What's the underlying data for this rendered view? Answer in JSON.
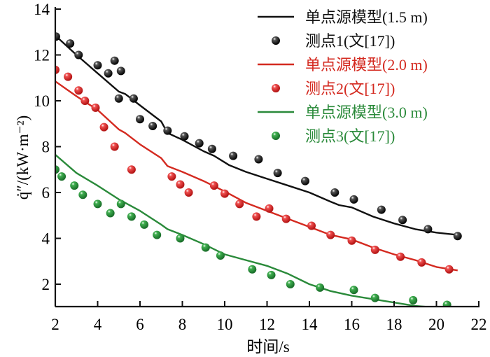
{
  "chart_data": {
    "type": "line",
    "title": "",
    "xlabel": "时间/s",
    "ylabel": "q̇″/(kW·m⁻²)",
    "xlim": [
      2,
      22
    ],
    "ylim": [
      1,
      14
    ],
    "xticks": [
      2,
      4,
      6,
      8,
      10,
      12,
      14,
      16,
      18,
      20,
      22
    ],
    "yticks": [
      2,
      4,
      6,
      8,
      10,
      12,
      14
    ],
    "grid": false,
    "legend_position": "top-right",
    "series": [
      {
        "name": "单点源模型(1.5 m)",
        "kind": "line",
        "color": "#111111",
        "x": [
          2,
          3,
          4,
          5,
          5.3,
          6,
          7,
          7.3,
          8,
          9,
          9.5,
          10.2,
          11,
          12,
          13,
          14,
          15,
          15.4,
          16,
          17,
          18,
          19,
          20,
          21
        ],
        "y": [
          12.85,
          12.0,
          11.2,
          10.4,
          10.3,
          9.8,
          9.1,
          8.6,
          8.3,
          7.8,
          7.6,
          7.2,
          6.9,
          6.6,
          6.3,
          6.0,
          5.6,
          5.45,
          5.35,
          4.95,
          4.65,
          4.4,
          4.25,
          4.15
        ]
      },
      {
        "name": "测点1(文[17])",
        "kind": "scatter",
        "color": "#111111",
        "x": [
          2.03,
          2.7,
          3.1,
          4.0,
          4.5,
          4.8,
          5.1,
          5.0,
          5.7,
          6.0,
          6.6,
          7.3,
          8.1,
          8.8,
          9.4,
          10.4,
          11.6,
          12.5,
          13.8,
          15.2,
          16.1,
          17.4,
          18.4,
          19.6,
          21.0
        ],
        "y": [
          12.8,
          12.5,
          12.0,
          11.55,
          11.2,
          11.75,
          11.3,
          10.1,
          10.1,
          9.2,
          8.9,
          8.7,
          8.45,
          8.15,
          7.9,
          7.6,
          7.45,
          6.85,
          6.5,
          6.0,
          5.7,
          5.25,
          4.8,
          4.4,
          4.1
        ]
      },
      {
        "name": "单点源模型(2.0 m)",
        "kind": "line",
        "color": "#d42a20",
        "x": [
          2,
          3,
          4,
          5,
          5.3,
          6,
          7,
          7.3,
          8,
          9,
          10,
          11,
          12,
          13,
          14,
          15,
          16,
          17,
          18,
          19,
          20,
          21
        ],
        "y": [
          10.85,
          10.2,
          9.6,
          8.75,
          8.6,
          8.1,
          7.5,
          7.15,
          6.9,
          6.5,
          6.05,
          5.55,
          5.2,
          4.85,
          4.5,
          4.15,
          3.95,
          3.6,
          3.3,
          3.05,
          2.75,
          2.6
        ]
      },
      {
        "name": "测点2(文[17])",
        "kind": "scatter",
        "color": "#d42a20",
        "x": [
          2.0,
          2.6,
          3.1,
          3.4,
          3.9,
          4.3,
          4.8,
          5.6,
          7.5,
          7.9,
          8.3,
          9.5,
          10.0,
          10.7,
          11.5,
          12.1,
          12.9,
          14.1,
          15.0,
          16.0,
          17.1,
          18.3,
          19.3,
          20.6
        ],
        "y": [
          11.35,
          11.05,
          10.45,
          10.0,
          9.7,
          8.85,
          8.0,
          7.0,
          6.7,
          6.35,
          6.0,
          6.3,
          5.95,
          5.5,
          4.95,
          5.3,
          4.85,
          4.55,
          4.15,
          3.9,
          3.5,
          3.2,
          2.95,
          2.65
        ]
      },
      {
        "name": "单点源模型(3.0 m)",
        "kind": "line",
        "color": "#2a8a3a",
        "x": [
          2,
          3,
          4,
          5,
          6,
          7,
          7.3,
          8,
          9,
          10,
          11,
          12,
          13,
          14,
          15,
          16,
          17,
          18,
          19,
          20
        ],
        "y": [
          7.65,
          6.85,
          6.3,
          5.7,
          5.2,
          4.6,
          4.4,
          4.15,
          3.75,
          3.3,
          3.05,
          2.8,
          2.45,
          2.0,
          1.7,
          1.5,
          1.35,
          1.2,
          1.05,
          0.98
        ]
      },
      {
        "name": "测点3(文[17])",
        "kind": "scatter",
        "color": "#2a8a3a",
        "x": [
          2.0,
          2.3,
          2.9,
          3.3,
          4.0,
          4.6,
          5.1,
          5.6,
          6.2,
          6.8,
          7.9,
          9.1,
          9.8,
          11.3,
          12.2,
          13.1,
          14.5,
          16.1,
          17.1,
          18.9,
          20.5
        ],
        "y": [
          7.0,
          6.7,
          6.3,
          5.9,
          5.5,
          5.1,
          5.5,
          4.95,
          4.6,
          4.15,
          4.0,
          3.6,
          3.25,
          2.65,
          2.4,
          2.0,
          1.85,
          1.75,
          1.4,
          1.3,
          1.1
        ]
      }
    ]
  }
}
